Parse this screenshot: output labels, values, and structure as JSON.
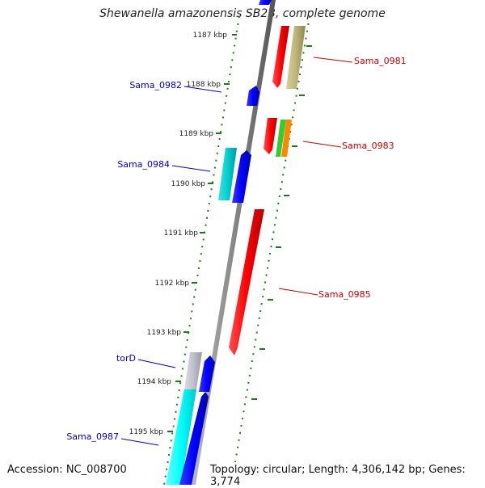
{
  "header": {
    "title": "Shewanella amazonensis SB2B, complete genome"
  },
  "footer": {
    "accession": "Accession: NC_008700",
    "topology": "Topology: circular; Length: 4,306,142 bp; Genes: 3,774"
  },
  "ruler": {
    "ticks": [
      "1187 kbp",
      "1188 kbp",
      "1189 kbp",
      "1190 kbp",
      "1191 kbp",
      "1192 kbp",
      "1193 kbp",
      "1194 kbp",
      "1195 kbp"
    ]
  },
  "genes": {
    "left": [
      {
        "name": "Sama_0982",
        "color": "#0000cc"
      },
      {
        "name": "Sama_0984",
        "color": "#0000cc"
      },
      {
        "name": "torD",
        "color": "#0000cc"
      },
      {
        "name": "Sama_0987",
        "color": "#0000cc"
      }
    ],
    "right": [
      {
        "name": "Sama_0981",
        "color": "#cc0000"
      },
      {
        "name": "Sama_0983",
        "color": "#cc0000"
      },
      {
        "name": "Sama_0985",
        "color": "#cc0000"
      }
    ]
  },
  "colors": {
    "backbone": "#888888",
    "tick": "#1a7a1a",
    "forward_gene": "#ff0000",
    "reverse_gene": "#0000ff",
    "cyan_gene": "#00cccc",
    "olive_gene": "#b8b070",
    "green_gene": "#33cc33",
    "orange_gene": "#ff8800",
    "gray_gene": "#b8b8c8"
  }
}
